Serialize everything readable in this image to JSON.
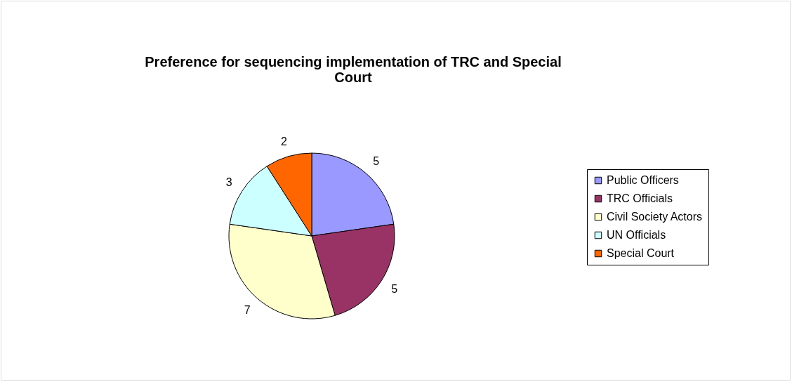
{
  "chart_data": {
    "type": "pie",
    "title": "Preference for sequencing implementation of TRC and Special Court",
    "categories": [
      "Public Officers",
      "TRC Officials",
      "Civil Society Actors",
      "UN Officials",
      "Special Court"
    ],
    "values": [
      5,
      5,
      7,
      3,
      2
    ],
    "colors": [
      "#9999ff",
      "#993366",
      "#ffffcc",
      "#ccffff",
      "#ff6600"
    ],
    "data_labels": true,
    "legend": "right"
  }
}
